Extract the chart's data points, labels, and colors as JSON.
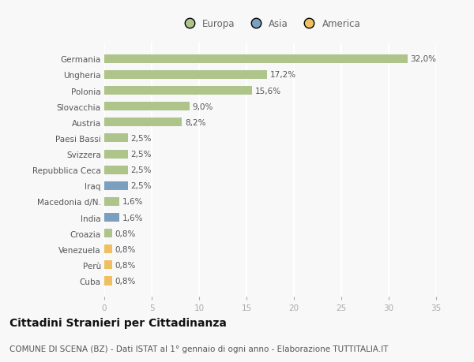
{
  "categories": [
    "Germania",
    "Ungheria",
    "Polonia",
    "Slovacchia",
    "Austria",
    "Paesi Bassi",
    "Svizzera",
    "Repubblica Ceca",
    "Iraq",
    "Macedonia d/N.",
    "India",
    "Croazia",
    "Venezuela",
    "Perù",
    "Cuba"
  ],
  "values": [
    32.0,
    17.2,
    15.6,
    9.0,
    8.2,
    2.5,
    2.5,
    2.5,
    2.5,
    1.6,
    1.6,
    0.8,
    0.8,
    0.8,
    0.8
  ],
  "labels": [
    "32,0%",
    "17,2%",
    "15,6%",
    "9,0%",
    "8,2%",
    "2,5%",
    "2,5%",
    "2,5%",
    "2,5%",
    "1,6%",
    "1,6%",
    "0,8%",
    "0,8%",
    "0,8%",
    "0,8%"
  ],
  "colors": [
    "#aec48a",
    "#aec48a",
    "#aec48a",
    "#aec48a",
    "#aec48a",
    "#aec48a",
    "#aec48a",
    "#aec48a",
    "#7a9fbf",
    "#aec48a",
    "#7a9fbf",
    "#aec48a",
    "#f0c060",
    "#f0c060",
    "#f0c060"
  ],
  "legend_labels": [
    "Europa",
    "Asia",
    "America"
  ],
  "legend_colors": [
    "#aec48a",
    "#7a9fbf",
    "#f0c060"
  ],
  "title": "Cittadini Stranieri per Cittadinanza",
  "subtitle": "COMUNE DI SCENA (BZ) - Dati ISTAT al 1° gennaio di ogni anno - Elaborazione TUTTITALIA.IT",
  "xlim": [
    0,
    35
  ],
  "xticks": [
    0,
    5,
    10,
    15,
    20,
    25,
    30,
    35
  ],
  "background_color": "#f8f8f8",
  "grid_color": "#ffffff",
  "title_fontsize": 10,
  "subtitle_fontsize": 7.5,
  "label_fontsize": 7.5,
  "tick_fontsize": 7.5,
  "legend_fontsize": 8.5
}
